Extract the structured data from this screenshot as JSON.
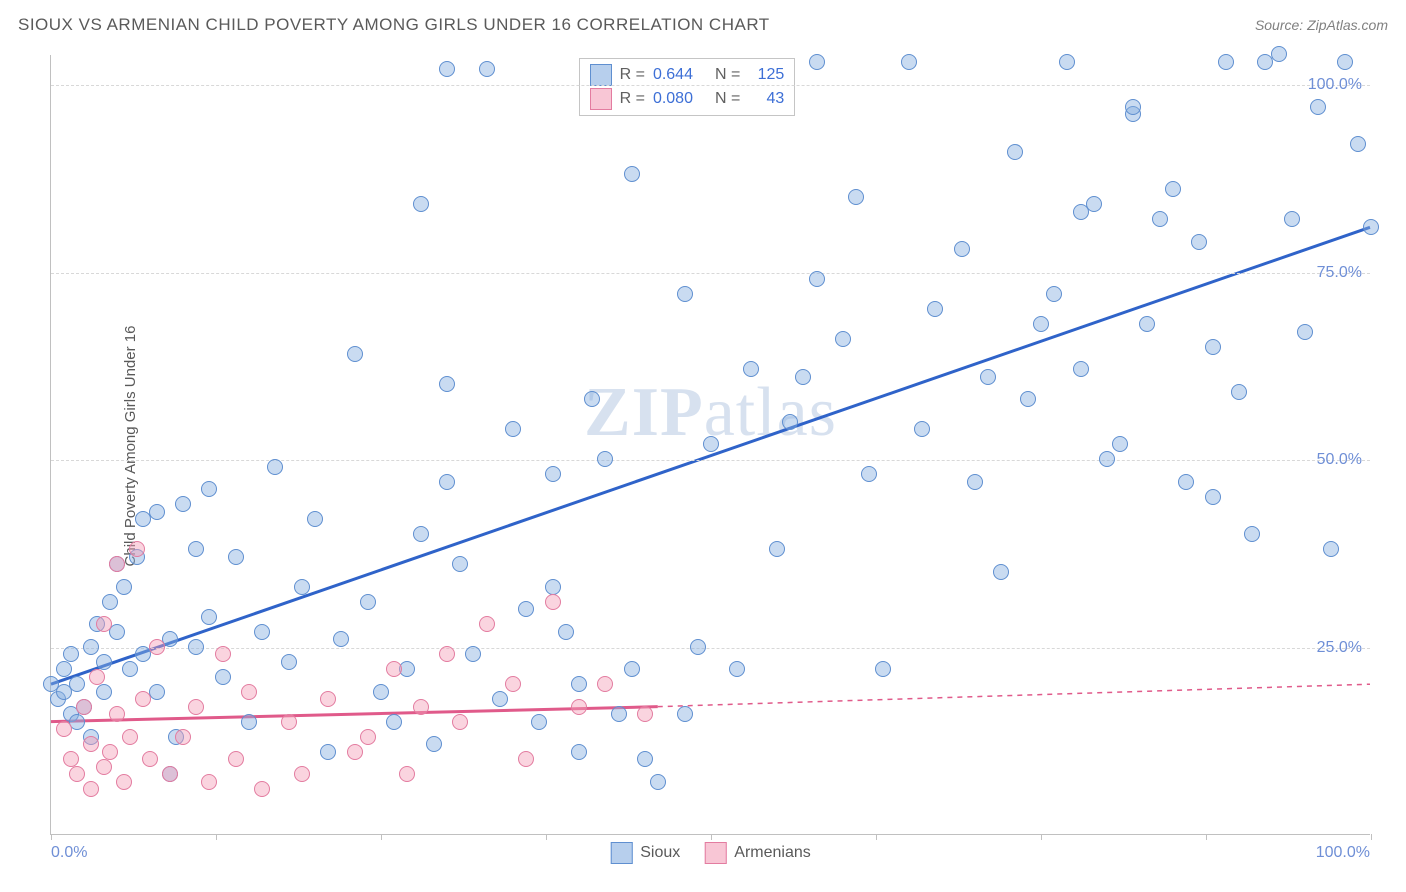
{
  "header": {
    "title": "SIOUX VS ARMENIAN CHILD POVERTY AMONG GIRLS UNDER 16 CORRELATION CHART",
    "source": "Source: ZipAtlas.com"
  },
  "chart": {
    "type": "scatter",
    "ylabel": "Child Poverty Among Girls Under 16",
    "xlim": [
      0,
      100
    ],
    "ylim": [
      0,
      104
    ],
    "ytick_values": [
      25,
      50,
      75,
      100
    ],
    "ytick_labels": [
      "25.0%",
      "50.0%",
      "75.0%",
      "100.0%"
    ],
    "xtick_values": [
      0,
      12.5,
      25,
      37.5,
      50,
      62.5,
      75,
      87.5,
      100
    ],
    "xtick_label_left": "0.0%",
    "xtick_label_right": "100.0%",
    "grid_color": "#d8d8d8",
    "background_color": "#ffffff",
    "axis_color": "#c0c0c0",
    "tick_label_color": "#6f8fd6",
    "watermark_text_bold": "ZIP",
    "watermark_text_light": "atlas",
    "marker_radius": 8,
    "marker_stroke_width": 1,
    "series": [
      {
        "name": "Sioux",
        "fill": "rgba(135, 175, 225, 0.45)",
        "stroke": "#5f8fd0",
        "trend_color": "#2f63c9",
        "trend_width": 3,
        "trend_dash_extension": false,
        "trend": {
          "x1": 0,
          "y1": 20,
          "x2": 100,
          "y2": 81
        },
        "R": "0.644",
        "N": "125",
        "points": [
          [
            0,
            20
          ],
          [
            0.5,
            18
          ],
          [
            1,
            19
          ],
          [
            1,
            22
          ],
          [
            1.5,
            16
          ],
          [
            1.5,
            24
          ],
          [
            2,
            15
          ],
          [
            2,
            20
          ],
          [
            2.5,
            17
          ],
          [
            3,
            13
          ],
          [
            3,
            25
          ],
          [
            3.5,
            28
          ],
          [
            4,
            19
          ],
          [
            4,
            23
          ],
          [
            4.5,
            31
          ],
          [
            5,
            27
          ],
          [
            5,
            36
          ],
          [
            5.5,
            33
          ],
          [
            6,
            22
          ],
          [
            6.5,
            37
          ],
          [
            7,
            24
          ],
          [
            7,
            42
          ],
          [
            8,
            43
          ],
          [
            8,
            19
          ],
          [
            9,
            26
          ],
          [
            9,
            8
          ],
          [
            9.5,
            13
          ],
          [
            10,
            44
          ],
          [
            11,
            25
          ],
          [
            11,
            38
          ],
          [
            12,
            46
          ],
          [
            12,
            29
          ],
          [
            13,
            21
          ],
          [
            14,
            37
          ],
          [
            15,
            15
          ],
          [
            16,
            27
          ],
          [
            17,
            49
          ],
          [
            18,
            23
          ],
          [
            19,
            33
          ],
          [
            20,
            42
          ],
          [
            21,
            11
          ],
          [
            22,
            26
          ],
          [
            23,
            64
          ],
          [
            24,
            31
          ],
          [
            25,
            19
          ],
          [
            26,
            15
          ],
          [
            27,
            22
          ],
          [
            28,
            40
          ],
          [
            28,
            84
          ],
          [
            29,
            12
          ],
          [
            30,
            47
          ],
          [
            30,
            60
          ],
          [
            30,
            102
          ],
          [
            31,
            36
          ],
          [
            32,
            24
          ],
          [
            33,
            102
          ],
          [
            34,
            18
          ],
          [
            35,
            54
          ],
          [
            36,
            30
          ],
          [
            37,
            15
          ],
          [
            38,
            48
          ],
          [
            38,
            33
          ],
          [
            39,
            27
          ],
          [
            40,
            20
          ],
          [
            40,
            11
          ],
          [
            41,
            58
          ],
          [
            42,
            50
          ],
          [
            43,
            16
          ],
          [
            44,
            22
          ],
          [
            44,
            88
          ],
          [
            45,
            10
          ],
          [
            46,
            7
          ],
          [
            48,
            16
          ],
          [
            48,
            72
          ],
          [
            49,
            25
          ],
          [
            50,
            52
          ],
          [
            52,
            22
          ],
          [
            53,
            62
          ],
          [
            55,
            38
          ],
          [
            56,
            55
          ],
          [
            57,
            61
          ],
          [
            58,
            74
          ],
          [
            58,
            103
          ],
          [
            60,
            66
          ],
          [
            61,
            85
          ],
          [
            62,
            48
          ],
          [
            63,
            22
          ],
          [
            65,
            103
          ],
          [
            66,
            54
          ],
          [
            67,
            70
          ],
          [
            69,
            78
          ],
          [
            70,
            47
          ],
          [
            71,
            61
          ],
          [
            72,
            35
          ],
          [
            73,
            91
          ],
          [
            74,
            58
          ],
          [
            75,
            68
          ],
          [
            76,
            72
          ],
          [
            77,
            103
          ],
          [
            78,
            62
          ],
          [
            79,
            84
          ],
          [
            80,
            50
          ],
          [
            81,
            52
          ],
          [
            82,
            96
          ],
          [
            82,
            97
          ],
          [
            83,
            68
          ],
          [
            84,
            82
          ],
          [
            85,
            86
          ],
          [
            86,
            47
          ],
          [
            87,
            79
          ],
          [
            88,
            65
          ],
          [
            89,
            103
          ],
          [
            90,
            59
          ],
          [
            91,
            40
          ],
          [
            92,
            103
          ],
          [
            93,
            104
          ],
          [
            94,
            82
          ],
          [
            95,
            67
          ],
          [
            96,
            97
          ],
          [
            97,
            38
          ],
          [
            98,
            103
          ],
          [
            99,
            92
          ],
          [
            100,
            81
          ],
          [
            88,
            45
          ],
          [
            78,
            83
          ]
        ]
      },
      {
        "name": "Armenians",
        "fill": "rgba(244, 160, 185, 0.45)",
        "stroke": "#e37ca0",
        "trend_color": "#e05a8a",
        "trend_width": 3,
        "trend_dash_extension": true,
        "trend": {
          "x1": 0,
          "y1": 15,
          "x2": 46,
          "y2": 17
        },
        "trend_dash": {
          "x1": 46,
          "y1": 17,
          "x2": 100,
          "y2": 20
        },
        "R": "0.080",
        "N": "43",
        "points": [
          [
            1,
            14
          ],
          [
            1.5,
            10
          ],
          [
            2,
            8
          ],
          [
            2.5,
            17
          ],
          [
            3,
            12
          ],
          [
            3,
            6
          ],
          [
            3.5,
            21
          ],
          [
            4,
            28
          ],
          [
            4,
            9
          ],
          [
            4.5,
            11
          ],
          [
            5,
            36
          ],
          [
            5,
            16
          ],
          [
            5.5,
            7
          ],
          [
            6,
            13
          ],
          [
            6.5,
            38
          ],
          [
            7,
            18
          ],
          [
            7.5,
            10
          ],
          [
            8,
            25
          ],
          [
            9,
            8
          ],
          [
            10,
            13
          ],
          [
            11,
            17
          ],
          [
            12,
            7
          ],
          [
            13,
            24
          ],
          [
            14,
            10
          ],
          [
            15,
            19
          ],
          [
            16,
            6
          ],
          [
            18,
            15
          ],
          [
            19,
            8
          ],
          [
            21,
            18
          ],
          [
            23,
            11
          ],
          [
            24,
            13
          ],
          [
            26,
            22
          ],
          [
            27,
            8
          ],
          [
            28,
            17
          ],
          [
            30,
            24
          ],
          [
            31,
            15
          ],
          [
            33,
            28
          ],
          [
            35,
            20
          ],
          [
            36,
            10
          ],
          [
            38,
            31
          ],
          [
            40,
            17
          ],
          [
            42,
            20
          ],
          [
            45,
            16
          ]
        ]
      }
    ],
    "legend_top": {
      "rows": [
        {
          "swatch_fill": "rgba(135,175,225,0.6)",
          "swatch_stroke": "#5f8fd0",
          "R_label": "R =",
          "R_value": "0.644",
          "N_label": "N =",
          "N_value": "125"
        },
        {
          "swatch_fill": "rgba(244,160,185,0.6)",
          "swatch_stroke": "#e37ca0",
          "R_label": "R =",
          "R_value": "0.080",
          "N_label": "N =",
          "N_value": "43"
        }
      ]
    },
    "legend_bottom": {
      "items": [
        {
          "swatch_fill": "rgba(135,175,225,0.6)",
          "swatch_stroke": "#5f8fd0",
          "label": "Sioux"
        },
        {
          "swatch_fill": "rgba(244,160,185,0.6)",
          "swatch_stroke": "#e37ca0",
          "label": "Armenians"
        }
      ]
    }
  }
}
